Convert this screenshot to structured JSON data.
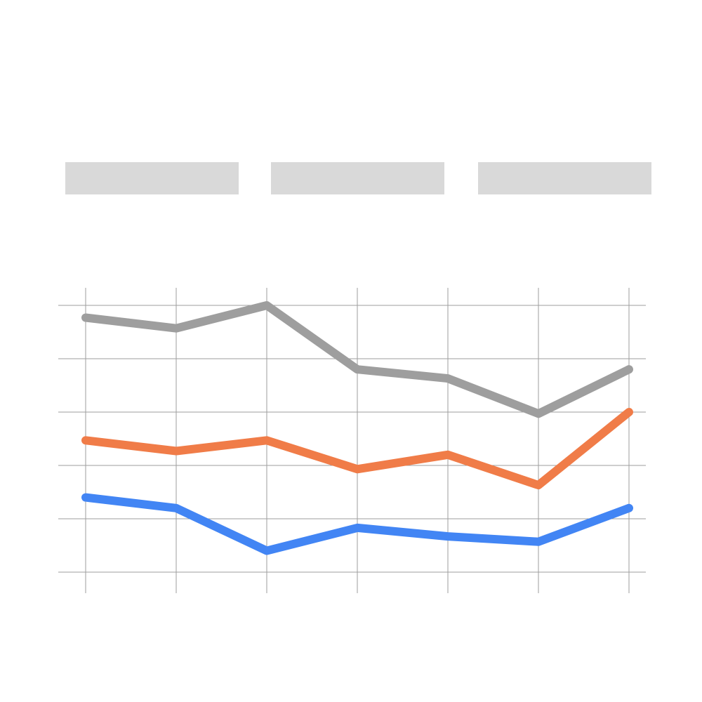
{
  "chart_data": {
    "type": "line",
    "title": "",
    "xlabel": "",
    "ylabel": "",
    "x": [
      1,
      2,
      3,
      4,
      5,
      6,
      7
    ],
    "ylim": [
      0,
      5
    ],
    "yticks": [
      0,
      1,
      2,
      3,
      4,
      5
    ],
    "grid": true,
    "legend": "top",
    "series": [
      {
        "color": "#4285f4",
        "values": [
          1.4,
          1.2,
          0.4,
          0.83,
          0.67,
          0.57,
          1.2
        ]
      },
      {
        "color": "#f07c48",
        "values": [
          2.47,
          2.27,
          2.47,
          1.93,
          2.2,
          1.63,
          3.0
        ]
      },
      {
        "color": "#9e9e9e",
        "values": [
          4.77,
          4.57,
          5.0,
          3.8,
          3.63,
          2.97,
          3.8
        ]
      }
    ]
  }
}
